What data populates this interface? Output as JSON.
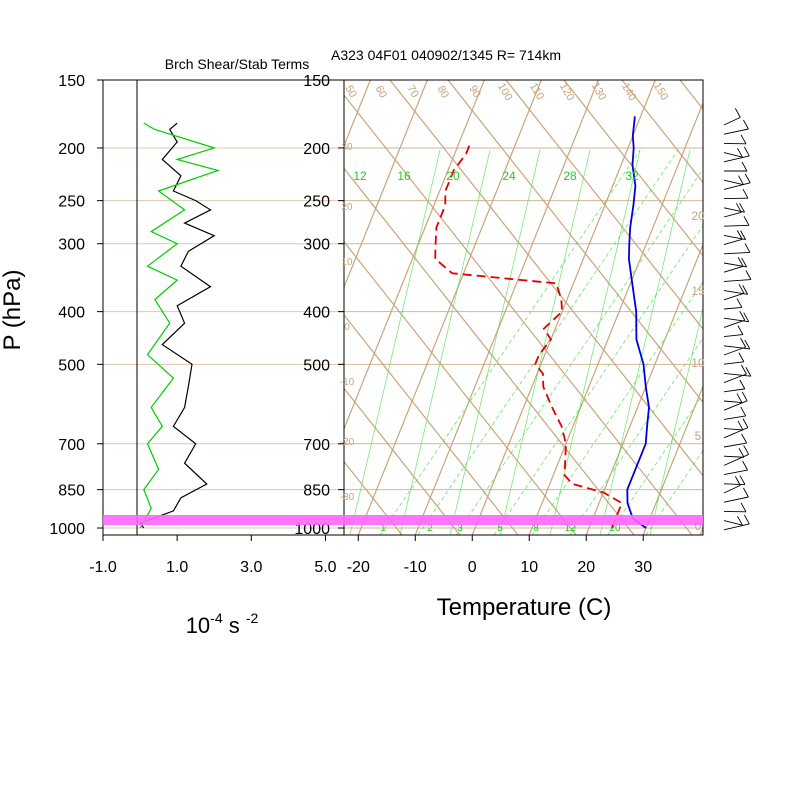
{
  "panels": {
    "left_title": "Brch Shear/Stab Terms",
    "right_title": "A323 04F01 040902/1345 R= 714km"
  },
  "axes": {
    "ylabel": "P (hPa)",
    "pressure_ticks": [
      150,
      200,
      250,
      300,
      400,
      500,
      700,
      850,
      1000
    ],
    "left_x_ticks": [
      "-1.0",
      "1.0",
      "3.0",
      "5.0"
    ],
    "left_x_values": [
      -1,
      1,
      3,
      5
    ],
    "left_x_unit_base": "10",
    "left_x_unit_exp": "-4",
    "left_x_unit_mid": " s ",
    "left_x_unit_exp2": "-2",
    "temp_ticks": [
      -20,
      -10,
      0,
      10,
      20,
      30
    ],
    "temp_label": "Temperature (C)"
  },
  "overlay_labels": {
    "mixing_ratio": [
      "12",
      "16",
      "20",
      "24",
      "28",
      "32"
    ],
    "dry_adiabat": [
      "50",
      "60",
      "70",
      "80",
      "90",
      "100",
      "110",
      "120",
      "130",
      "140",
      "150"
    ],
    "moist_adiabat": [
      "1",
      "2",
      "3",
      "5",
      "8",
      "12",
      "20"
    ],
    "height_km": [
      "0",
      "5",
      "10",
      "15",
      "20"
    ],
    "small_left": [
      "30",
      "20",
      "10",
      "0",
      "-10",
      "-20",
      "-30",
      "-40"
    ]
  },
  "colors": {
    "temperature": "#0000dd",
    "dewpoint": "#e00000",
    "shear_term": "#000000",
    "stab_term": "#00cc00",
    "skewt_grid": "#c8a47c",
    "moist_adiabat": "#44dd44",
    "highlight_band": "#ff66ff"
  },
  "chart_data": [
    {
      "type": "line",
      "title": "Brch Shear/Stab Terms",
      "xlabel": "10^-4 s^-2",
      "ylabel": "P (hPa)",
      "xlim": [
        -1,
        5.5
      ],
      "ylim": [
        1030,
        150
      ],
      "y_scale": "log",
      "series": [
        {
          "values": [
            [
              1.0,
              180
            ],
            [
              0.8,
              185
            ],
            [
              1.0,
              195
            ],
            [
              0.6,
              210
            ],
            [
              1.1,
              225
            ],
            [
              0.9,
              240
            ],
            [
              1.5,
              250
            ],
            [
              1.9,
              260
            ],
            [
              1.2,
              275
            ],
            [
              2.0,
              290
            ],
            [
              1.3,
              310
            ],
            [
              1.1,
              330
            ],
            [
              1.9,
              360
            ],
            [
              1.0,
              390
            ],
            [
              1.2,
              420
            ],
            [
              0.6,
              460
            ],
            [
              1.4,
              500
            ],
            [
              1.3,
              550
            ],
            [
              1.2,
              600
            ],
            [
              0.9,
              650
            ],
            [
              1.5,
              700
            ],
            [
              1.2,
              760
            ],
            [
              1.8,
              830
            ],
            [
              1.1,
              880
            ],
            [
              0.9,
              930
            ],
            [
              0.0,
              980
            ],
            [
              0.1,
              1000
            ]
          ]
        },
        {
          "values": [
            [
              0.1,
              180
            ],
            [
              0.4,
              185
            ],
            [
              2.0,
              200
            ],
            [
              1.0,
              210
            ],
            [
              2.1,
              220
            ],
            [
              0.5,
              240
            ],
            [
              1.2,
              260
            ],
            [
              0.3,
              285
            ],
            [
              1.0,
              300
            ],
            [
              0.2,
              330
            ],
            [
              1.0,
              350
            ],
            [
              0.4,
              380
            ],
            [
              0.8,
              420
            ],
            [
              0.2,
              480
            ],
            [
              0.9,
              530
            ],
            [
              0.3,
              600
            ],
            [
              0.6,
              650
            ],
            [
              0.2,
              700
            ],
            [
              0.5,
              780
            ],
            [
              0.1,
              850
            ],
            [
              0.3,
              920
            ],
            [
              0.0,
              1000
            ]
          ]
        }
      ]
    },
    {
      "type": "line",
      "title": "A323 04F01 040902/1345 R= 714km",
      "xlabel": "Temperature (C)",
      "ylabel": "P (hPa)",
      "xlim": [
        -23,
        40
      ],
      "ylim": [
        1030,
        150
      ],
      "y_scale": "log",
      "skew": "skew-T log-P",
      "series": [
        {
          "values": [
            [
              30,
              1000
            ],
            [
              27,
              960
            ],
            [
              25,
              900
            ],
            [
              24,
              850
            ],
            [
              24,
              800
            ],
            [
              24,
              740
            ],
            [
              24,
              700
            ],
            [
              23,
              650
            ],
            [
              22,
              600
            ],
            [
              20,
              550
            ],
            [
              18,
              500
            ],
            [
              15,
              450
            ],
            [
              13,
              400
            ],
            [
              10,
              350
            ],
            [
              8,
              320
            ],
            [
              7,
              300
            ],
            [
              6,
              280
            ],
            [
              5,
              255
            ],
            [
              4,
              235
            ],
            [
              2,
              215
            ],
            [
              1,
              200
            ],
            [
              0,
              190
            ],
            [
              -1,
              175
            ]
          ]
        },
        {
          "values": [
            [
              24,
              1000
            ],
            [
              24,
              960
            ],
            [
              24,
              900
            ],
            [
              20,
              860
            ],
            [
              14,
              830
            ],
            [
              12,
              800
            ],
            [
              10,
              700
            ],
            [
              8,
              650
            ],
            [
              5,
              600
            ],
            [
              2,
              550
            ],
            [
              1,
              520
            ],
            [
              -1,
              500
            ],
            [
              -1,
              480
            ],
            [
              0,
              450
            ],
            [
              -2,
              430
            ],
            [
              0,
              400
            ],
            [
              -1,
              380
            ],
            [
              -3,
              355
            ],
            [
              -22,
              340
            ],
            [
              -26,
              320
            ],
            [
              -27,
              300
            ],
            [
              -28,
              280
            ],
            [
              -28,
              270
            ],
            [
              -28,
              255
            ],
            [
              -29,
              240
            ],
            [
              -29,
              220
            ],
            [
              -28,
              205
            ],
            [
              -28,
              195
            ]
          ]
        }
      ]
    }
  ]
}
